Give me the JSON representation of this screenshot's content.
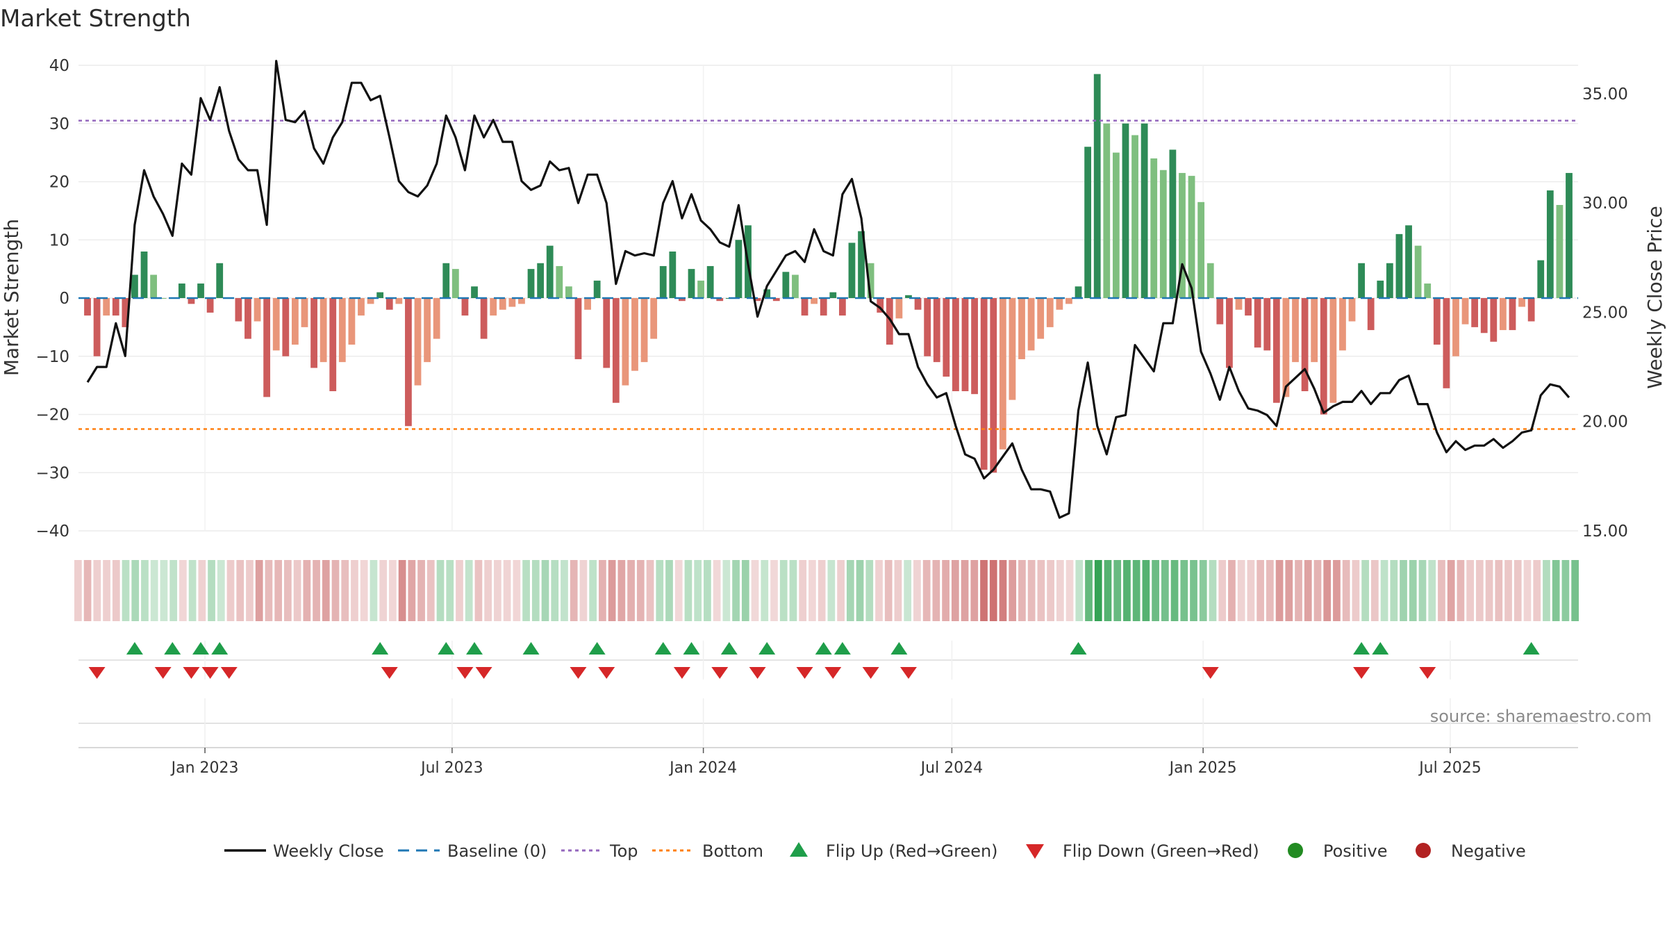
{
  "chart_data": {
    "type": "bar",
    "title": "Market Strength",
    "ylabel_left": "Market Strength",
    "ylabel_right": "Weekly Close Price",
    "ylim_left": [
      -40,
      40
    ],
    "yticks_left": [
      "40",
      "30",
      "20",
      "10",
      "0",
      "−10",
      "−20",
      "−30",
      "−40"
    ],
    "ylim_right": [
      15,
      36.3
    ],
    "yticks_right": [
      "35.00",
      "30.00",
      "25.00",
      "20.00",
      "15.00"
    ],
    "x_start": "2022-10-07",
    "x_end": "2025-09-26",
    "date_ticks": [
      "Jan 2023",
      "Jul 2023",
      "Jan 2024",
      "Jul 2024",
      "Jan 2025",
      "Jul 2025"
    ],
    "date_tick_values": [
      "2023-01-01",
      "2023-07-01",
      "2024-01-01",
      "2024-07-01",
      "2025-01-01",
      "2025-07-01"
    ],
    "top_level": 30.5,
    "bottom_level": -22.5,
    "baseline": 0,
    "grid": true,
    "legend_position": "bottom",
    "source": "source: sharemaestro.com",
    "colors": {
      "line": "#111111",
      "baseline": "#1f77b4",
      "top": "#9467bd",
      "bottom": "#ff7f0e",
      "pos_dark": "#2e8b57",
      "pos_light": "#7fbf7f",
      "neg_dark": "#cd5c5c",
      "neg_light": "#e9967a",
      "flip_up": "#1f9e4a",
      "flip_down": "#d62728",
      "positive": "#228b22",
      "negative": "#b22222"
    },
    "legend": {
      "weekly_close": "Weekly Close",
      "baseline": "Baseline (0)",
      "top": "Top",
      "bottom": "Bottom",
      "flip_up": "Flip Up (Red→Green)",
      "flip_down": "Flip Down (Green→Red)",
      "positive": "Positive",
      "negative": "Negative"
    },
    "strength": [
      -3,
      -10,
      -3,
      -3,
      -5,
      4,
      8,
      4,
      0,
      0,
      2.5,
      -1,
      2.5,
      -2.5,
      6,
      0,
      -4,
      -7,
      -4,
      -17,
      -9,
      -10,
      -8,
      -5,
      -12,
      -11,
      -16,
      -11,
      -8,
      -3,
      -1,
      1,
      -2,
      -1,
      -22,
      -15,
      -11,
      -7,
      6,
      5,
      -3,
      2,
      -7,
      -3,
      -2,
      -1.5,
      -1,
      5,
      6,
      9,
      5.5,
      2,
      -10.5,
      -2,
      3,
      -12,
      -18,
      -15,
      -12.5,
      -11,
      -7,
      5.5,
      8,
      -0.5,
      5,
      3,
      5.5,
      -0.5,
      0,
      10,
      12.5,
      -0.5,
      1.5,
      -0.5,
      4.5,
      4,
      -3,
      -1,
      -3,
      1,
      -3,
      9.5,
      11.5,
      6,
      -2.5,
      -8,
      -3.5,
      0.5,
      -2,
      -10,
      -11,
      -13.5,
      -16,
      -16,
      -16.5,
      -29.5,
      -30,
      -26,
      -17.5,
      -10.5,
      -9,
      -7,
      -5,
      -2,
      -1,
      2,
      26,
      38.5,
      30,
      25,
      30,
      28,
      30,
      24,
      22,
      25.5,
      21.5,
      21,
      16.5,
      6,
      -4.5,
      -12,
      -2,
      -3,
      -8.5,
      -9,
      -18,
      -17,
      -11,
      -16,
      -11,
      -20,
      -18,
      -9,
      -4,
      6,
      -5.5,
      3,
      6,
      11,
      12.5,
      9,
      2.5,
      -8,
      -15.5,
      -10,
      -4.5,
      -5,
      -6,
      -7.5,
      -5.5,
      -5.5,
      -1.5,
      -4,
      6.5,
      18.5,
      16,
      21.5
    ],
    "weekly_close": [
      21.8,
      22.5,
      22.5,
      24.5,
      23,
      29,
      31.5,
      30.3,
      29.5,
      28.5,
      31.8,
      31.3,
      34.8,
      33.8,
      35.3,
      33.3,
      32,
      31.5,
      31.5,
      29,
      36.5,
      33.8,
      33.7,
      34.2,
      32.5,
      31.8,
      33,
      33.7,
      35.5,
      35.5,
      34.7,
      34.9,
      33,
      31,
      30.5,
      30.3,
      30.8,
      31.8,
      34,
      33,
      31.5,
      34,
      33,
      33.8,
      32.8,
      32.8,
      31,
      30.6,
      30.8,
      31.9,
      31.5,
      31.6,
      30,
      31.3,
      31.3,
      30,
      26.3,
      27.8,
      27.6,
      27.7,
      27.6,
      30,
      31,
      29.3,
      30.4,
      29.2,
      28.8,
      28.2,
      28,
      29.9,
      27.2,
      24.8,
      26.2,
      26.9,
      27.6,
      27.8,
      27.3,
      28.8,
      27.8,
      27.6,
      30.4,
      31.1,
      29.3,
      25.5,
      25.2,
      24.7,
      24,
      24,
      22.5,
      21.7,
      21.1,
      21.3,
      19.8,
      18.5,
      18.3,
      17.4,
      17.8,
      18.4,
      19,
      17.8,
      16.9,
      16.9,
      16.8,
      15.6,
      15.8,
      20.5,
      22.7,
      19.8,
      18.5,
      20.2,
      20.3,
      23.5,
      22.9,
      22.3,
      24.5,
      24.5,
      27.2,
      26.1,
      23.2,
      22.2,
      21,
      22.5,
      21.4,
      20.6,
      20.5,
      20.3,
      19.8,
      21.6,
      22,
      22.4,
      21.5,
      20.4,
      20.7,
      20.9,
      20.9,
      21.4,
      20.8,
      21.3,
      21.3,
      21.9,
      22.1,
      20.8,
      20.8,
      19.5,
      18.6,
      19.1,
      18.7,
      18.9,
      18.9,
      19.2,
      18.8,
      19.1,
      19.5,
      19.6,
      21.2,
      21.7,
      21.6,
      21.1
    ],
    "flip_up_weeks": [
      5,
      9,
      12,
      14,
      31,
      38,
      41,
      47,
      54,
      61,
      64,
      68,
      72,
      78,
      80,
      86,
      105,
      135,
      137,
      153
    ],
    "flip_down_weeks": [
      1,
      8,
      11,
      13,
      15,
      32,
      40,
      42,
      52,
      55,
      63,
      67,
      71,
      76,
      79,
      83,
      87,
      119,
      135,
      142
    ]
  }
}
